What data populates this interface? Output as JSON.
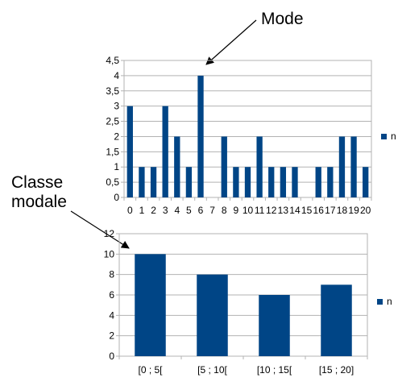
{
  "annotations": {
    "mode_label": "Mode",
    "classe_line1": "Classe",
    "classe_line2": "modale"
  },
  "colors": {
    "bar": "#004586",
    "grid": "#b3b3b3",
    "axis": "#b3b3b3"
  },
  "chart_data": [
    {
      "type": "bar",
      "categories": [
        "0",
        "1",
        "2",
        "3",
        "4",
        "5",
        "6",
        "7",
        "8",
        "9",
        "10",
        "11",
        "12",
        "13",
        "14",
        "15",
        "16",
        "17",
        "18",
        "19",
        "20"
      ],
      "series": [
        {
          "name": "n",
          "values": [
            3,
            1,
            1,
            3,
            2,
            1,
            4,
            0,
            2,
            1,
            1,
            2,
            1,
            1,
            1,
            0,
            1,
            1,
            2,
            2,
            1
          ]
        }
      ],
      "ylim": [
        0,
        4.5
      ],
      "yticks": [
        "0",
        "0,5",
        "1",
        "1,5",
        "2",
        "2,5",
        "3",
        "3,5",
        "4",
        "4,5"
      ],
      "grid": true,
      "legend": "right"
    },
    {
      "type": "bar",
      "categories": [
        "[0 ; 5[",
        "[5 ; 10[",
        "[10 ; 15[",
        "[15 ; 20]"
      ],
      "series": [
        {
          "name": "n",
          "values": [
            10,
            8,
            6,
            7
          ]
        }
      ],
      "ylim": [
        0,
        12
      ],
      "yticks": [
        "0",
        "2",
        "4",
        "6",
        "8",
        "10",
        "12"
      ],
      "grid": true,
      "legend": "right"
    }
  ]
}
